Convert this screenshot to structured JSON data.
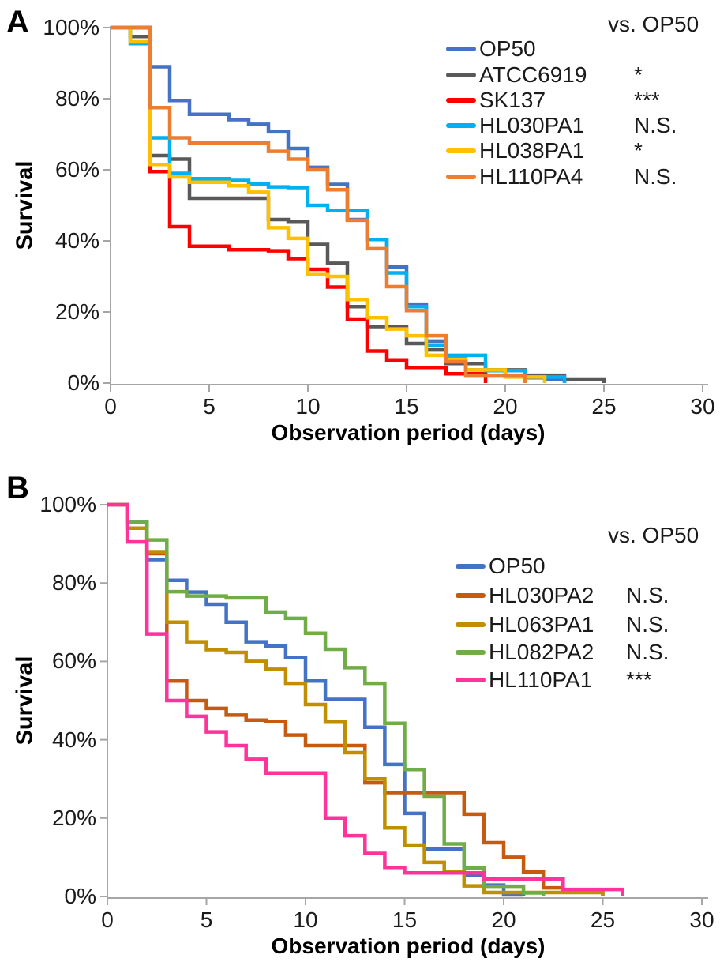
{
  "chart_data": [
    {
      "type": "line",
      "subtype": "kaplan-meier-step",
      "panel": "A",
      "xlabel": "Observation period (days)",
      "ylabel": "Survival",
      "legend_header": "vs. OP50",
      "legend_position": "top-right-inside",
      "grid": false,
      "xlim": [
        0,
        30
      ],
      "ylim": [
        0,
        100
      ],
      "x_ticks": [
        0,
        5,
        10,
        15,
        20,
        25,
        30
      ],
      "y_tick_labels": [
        "100%",
        "80%",
        "60%",
        "40%",
        "20%",
        "0%"
      ],
      "x_unit": "days",
      "y_unit": "percent",
      "series": [
        {
          "name": "OP50",
          "color": "#4472C4",
          "significance": "",
          "survival_pct_by_day": [
            100,
            100,
            89,
            79.5,
            75.6,
            75.6,
            74.1,
            72.8,
            70.7,
            66,
            60.7,
            55.9,
            46,
            40.4,
            32.7,
            22.2,
            11.8,
            7,
            3.7,
            3.7,
            2,
            1.5,
            1,
            0
          ]
        },
        {
          "name": "ATCC6919",
          "color": "#595959",
          "significance": "*",
          "survival_pct_by_day": [
            100,
            97.5,
            64,
            63,
            52,
            52,
            52,
            52,
            46,
            45.5,
            39,
            33.7,
            21.5,
            15.9,
            15.9,
            11.1,
            9.3,
            5.5,
            5.5,
            3.7,
            3.7,
            2.2,
            2.2,
            1.1,
            1.1,
            0
          ]
        },
        {
          "name": "SK137",
          "color": "#FF0000",
          "significance": "***",
          "survival_pct_by_day": [
            100,
            100,
            59.5,
            44,
            38.5,
            38.5,
            37.5,
            37.5,
            37.2,
            35,
            32,
            27,
            18,
            9,
            6.5,
            4.4,
            4.4,
            2.6,
            2.6,
            0
          ]
        },
        {
          "name": "HL030PA1",
          "color": "#00B0F0",
          "significance": "N.S.",
          "survival_pct_by_day": [
            100,
            95.5,
            69,
            59,
            57.5,
            57.5,
            57,
            56,
            55.2,
            55,
            50,
            48.5,
            48.5,
            40.4,
            31,
            21.5,
            10.7,
            7.8,
            7.8,
            3.5,
            3.5,
            1.7,
            1.7,
            0
          ]
        },
        {
          "name": "HL038PA1",
          "color": "#FFC000",
          "significance": "*",
          "survival_pct_by_day": [
            100,
            96,
            61.5,
            58,
            56.5,
            56.5,
            55.5,
            53.7,
            43.7,
            40.7,
            30.5,
            30,
            23.5,
            18.4,
            15.2,
            13.3,
            7.8,
            6.7,
            3.7,
            3.7,
            1.7,
            1.7,
            0
          ]
        },
        {
          "name": "HL110PA4",
          "color": "#ED7D31",
          "significance": "N.S.",
          "survival_pct_by_day": [
            100,
            100,
            77.5,
            69,
            67.5,
            67.5,
            67.5,
            67.5,
            65.2,
            63,
            60,
            54.4,
            45.8,
            37.8,
            27.1,
            20.4,
            13.3,
            6,
            2.2,
            2.2,
            2.2,
            0
          ]
        }
      ]
    },
    {
      "type": "line",
      "subtype": "kaplan-meier-step",
      "panel": "B",
      "xlabel": "Observation period (days)",
      "ylabel": "Survival",
      "legend_header": "vs. OP50",
      "legend_position": "top-right-inside",
      "grid": false,
      "xlim": [
        0,
        30
      ],
      "ylim": [
        0,
        100
      ],
      "x_ticks": [
        0,
        5,
        10,
        15,
        20,
        25,
        30
      ],
      "y_tick_labels": [
        "100%",
        "80%",
        "60%",
        "40%",
        "20%",
        "0%"
      ],
      "x_unit": "days",
      "y_unit": "percent",
      "series": [
        {
          "name": "OP50",
          "color": "#4472C4",
          "significance": "",
          "survival_pct_by_day": [
            100,
            95.5,
            86,
            80.7,
            77.7,
            74.6,
            70,
            65,
            63.9,
            61,
            55,
            50.3,
            50.3,
            43.2,
            33.7,
            21.2,
            12.1,
            12.1,
            5.5,
            2.9,
            0.4,
            0
          ]
        },
        {
          "name": "HL030PA2",
          "color": "#C55A11",
          "significance": "N.S.",
          "survival_pct_by_day": [
            100,
            94,
            87.5,
            55,
            50,
            48,
            46.3,
            45,
            44.6,
            41.2,
            38.5,
            38.5,
            38.5,
            29,
            26.5,
            26.5,
            26.5,
            26.5,
            21,
            13.7,
            10,
            6.2,
            2.2,
            1.2,
            1.2,
            0
          ]
        },
        {
          "name": "HL063PA1",
          "color": "#BF8F00",
          "significance": "N.S.",
          "survival_pct_by_day": [
            100,
            94,
            88,
            70,
            65,
            63,
            62.3,
            60,
            58,
            54.4,
            49,
            44.5,
            36.7,
            30,
            17.5,
            13.1,
            8.7,
            6.3,
            2.7,
            1,
            1,
            1,
            1,
            1,
            1,
            0
          ]
        },
        {
          "name": "HL082PA2",
          "color": "#70AD47",
          "significance": "N.S.",
          "survival_pct_by_day": [
            100,
            95.5,
            91,
            77.8,
            76.7,
            76.7,
            76.2,
            76.2,
            72.6,
            71,
            67.2,
            63.1,
            58.4,
            54.4,
            44.2,
            32.4,
            25.6,
            13.4,
            7.3,
            2.6,
            2.6,
            0.9,
            0
          ]
        },
        {
          "name": "HL110PA1",
          "color": "#FF3399",
          "significance": "***",
          "survival_pct_by_day": [
            100,
            90.5,
            67,
            50,
            46,
            42,
            38.5,
            35,
            31.5,
            31.5,
            31.5,
            20,
            15.5,
            11,
            7.4,
            6,
            6,
            6,
            6,
            4.4,
            4.4,
            4.4,
            4.4,
            1.8,
            1.8,
            1.8,
            0
          ]
        }
      ]
    }
  ]
}
